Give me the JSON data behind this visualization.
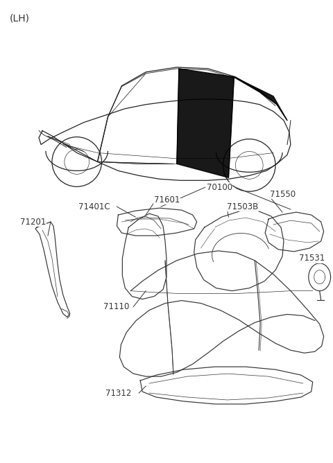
{
  "background_color": "#ffffff",
  "lh_label": "(LH)",
  "line_color": "#333333",
  "text_color": "#333333",
  "font_size": 8.5,
  "lh_font_size": 10,
  "car_color": "#222222",
  "part_color": "#333333"
}
